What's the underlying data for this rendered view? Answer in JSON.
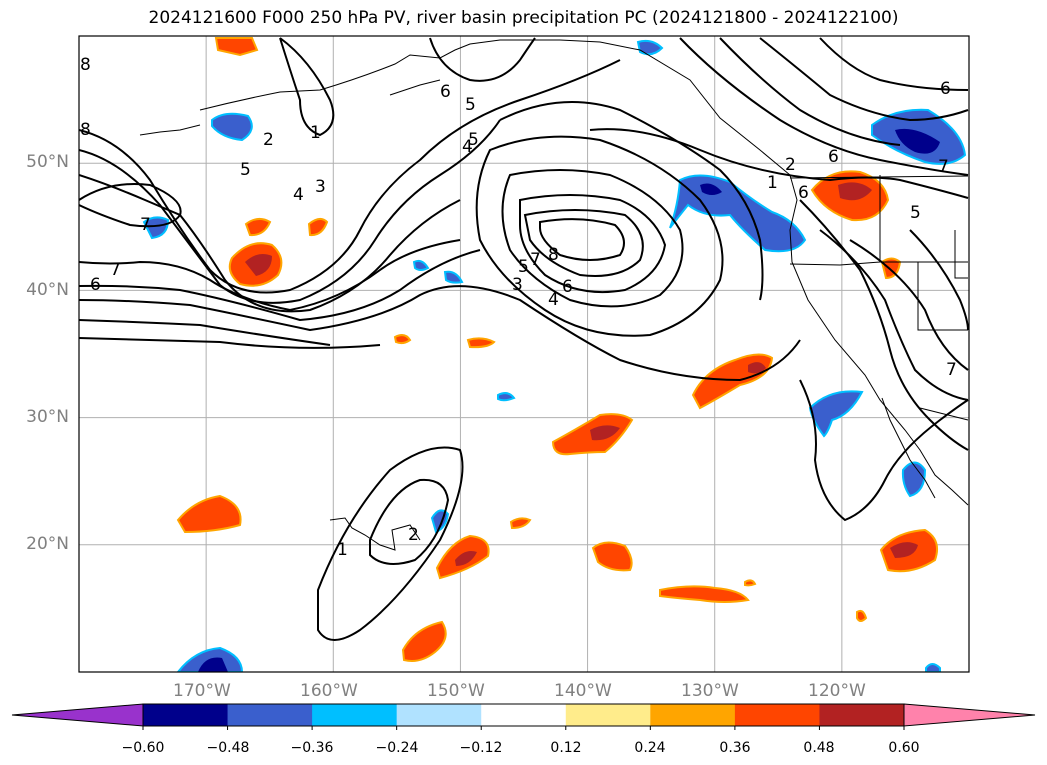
{
  "title": "2024121600 F000 250 hPa PV, river basin precipitation PC (2024121800 - 2024122100)",
  "map": {
    "extent": {
      "lon_min": -180,
      "lon_max": -110,
      "lat_min": 10,
      "lat_max": 60
    },
    "lat_ticks": [
      {
        "value": 50,
        "label": "50°N"
      },
      {
        "value": 40,
        "label": "40°N"
      },
      {
        "value": 30,
        "label": "30°N"
      },
      {
        "value": 20,
        "label": "20°N"
      }
    ],
    "lon_ticks": [
      {
        "value": -170,
        "label": "170°W"
      },
      {
        "value": -160,
        "label": "160°W"
      },
      {
        "value": -150,
        "label": "150°W"
      },
      {
        "value": -140,
        "label": "140°W"
      },
      {
        "value": -130,
        "label": "130°W"
      },
      {
        "value": -120,
        "label": "120°W"
      }
    ],
    "grid": true,
    "contour_labels": [
      "8",
      "8",
      "6",
      "5",
      "2",
      "1",
      "5",
      "4",
      "3",
      "7",
      "7",
      "6",
      "6",
      "5",
      "4",
      "5",
      "3",
      "7",
      "8",
      "4",
      "6",
      "6",
      "1",
      "2",
      "6",
      "7",
      "5",
      "7",
      "1",
      "2"
    ]
  },
  "colorbar": {
    "extend": "both",
    "ticks": [
      "−0.60",
      "−0.48",
      "−0.36",
      "−0.24",
      "−0.12",
      "0.12",
      "0.24",
      "0.36",
      "0.48",
      "0.60"
    ],
    "colors": [
      "#9932CC",
      "#00008B",
      "#3A5FCD",
      "#00BFFF",
      "#B0E2FF",
      "#FFFFFF",
      "#FFEC8B",
      "#FFA500",
      "#FF4500",
      "#B22222",
      "#FF82AB"
    ]
  }
}
